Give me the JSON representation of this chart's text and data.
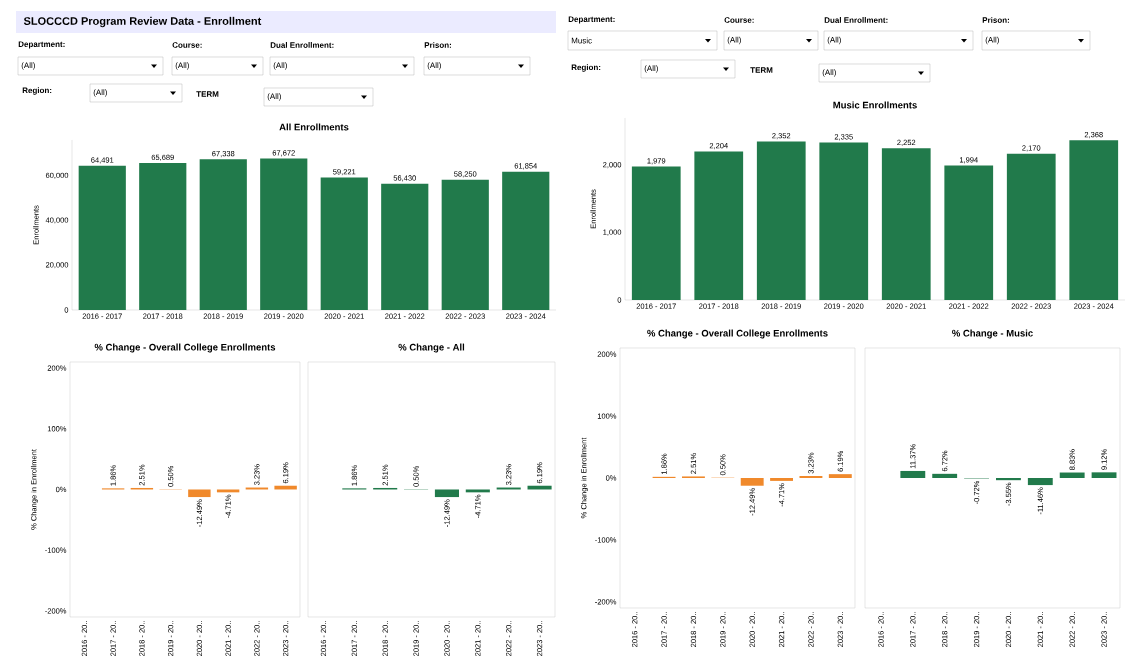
{
  "chart_data": [
    {
      "type": "other",
      "title": "SLOCCCD Program Review Data - Enrollment",
      "annotations": [
        "Department:",
        "(All)",
        "Course:",
        "(All)",
        "Dual Enrollment:",
        "(All)",
        "Prison:",
        "(All)",
        "Region:",
        "(All)",
        "TERM",
        "(All)"
      ]
    },
    {
      "type": "bar",
      "title": "All Enrollments",
      "ylabel": "Enrollments",
      "categories": [
        "2016 - 2017",
        "2017 - 2018",
        "2018 - 2019",
        "2019 - 2020",
        "2020 - 2021",
        "2021 - 2022",
        "2022 - 2023",
        "2023 - 2024"
      ],
      "values": [
        64491,
        65689,
        67338,
        67672,
        59221,
        56430,
        58250,
        61854
      ],
      "value_labels": [
        "64,491",
        "65,689",
        "67,338",
        "67,672",
        "59,221",
        "56,430",
        "58,250",
        "61,854"
      ],
      "color": "#217a4b",
      "ylim": [
        0,
        76000
      ],
      "yticks": [
        0,
        {
          "value": 20000,
          "label": "20,000"
        },
        {
          "value": 40000,
          "label": "40,000"
        },
        {
          "value": 60000,
          "label": "60,000"
        }
      ]
    },
    {
      "type": "bar",
      "title": "% Change - Overall College Enrollments",
      "ylabel": "% Change in Enrollment",
      "categories": [
        "2016 - 20..",
        "2017 - 20..",
        "2018 - 20..",
        "2019 - 20..",
        "2020 - 20..",
        "2021 - 20..",
        "2022 - 20..",
        "2023 - 20.."
      ],
      "values": [
        null,
        1.86,
        2.51,
        0.5,
        -12.49,
        -4.71,
        3.23,
        6.19
      ],
      "value_labels": [
        null,
        "1.86%",
        "2.51%",
        "0.50%",
        "-12.49%",
        "-4.71%",
        "3.23%",
        "6.19%"
      ],
      "color": "#f0892b",
      "ylim": [
        -210,
        210
      ],
      "yticks": [
        {
          "value": -200,
          "label": "-200%"
        },
        {
          "value": -100,
          "label": "-100%"
        },
        {
          "value": 0,
          "label": "0%"
        },
        {
          "value": 100,
          "label": "100%"
        },
        {
          "value": 200,
          "label": "200%"
        }
      ]
    },
    {
      "type": "bar",
      "title": "% Change - All",
      "categories": [
        "2016 - 20..",
        "2017 - 20..",
        "2018 - 20..",
        "2019 - 20..",
        "2020 - 20..",
        "2021 - 20..",
        "2022 - 20..",
        "2023 - 20.."
      ],
      "values": [
        null,
        1.86,
        2.51,
        0.5,
        -12.49,
        -4.71,
        3.23,
        6.19
      ],
      "value_labels": [
        null,
        "1.86%",
        "2.51%",
        "0.50%",
        "-12.49%",
        "-4.71%",
        "3.23%",
        "6.19%"
      ],
      "color": "#217a4b",
      "ylim": [
        -210,
        210
      ],
      "yticks": [
        {
          "value": -200,
          "label": null
        },
        {
          "value": -100,
          "label": null
        },
        {
          "value": 0,
          "label": null
        },
        {
          "value": 100,
          "label": null
        },
        {
          "value": 200,
          "label": null
        }
      ],
      "tick_labels": "x"
    },
    {
      "type": "other",
      "annotations": [
        "Department:",
        "Music",
        "Course:",
        "(All)",
        "Dual Enrollment:",
        "(All)",
        "Prison:",
        "(All)",
        "Region:",
        "(All)",
        "TERM",
        "(All)"
      ]
    },
    {
      "type": "bar",
      "title": "Music Enrollments",
      "ylabel": "Enrollments",
      "categories": [
        "2016 - 2017",
        "2017 - 2018",
        "2018 - 2019",
        "2019 - 2020",
        "2020 - 2021",
        "2021 - 2022",
        "2022 - 2023",
        "2023 - 2024"
      ],
      "values": [
        1979,
        2204,
        2352,
        2335,
        2252,
        1994,
        2170,
        2368
      ],
      "value_labels": [
        "1,979",
        "2,204",
        "2,352",
        "2,335",
        "2,252",
        "1,994",
        "2,170",
        "2,368"
      ],
      "color": "#217a4b",
      "ylim": [
        0,
        2700
      ],
      "yticks": [
        0,
        {
          "value": 1000,
          "label": "1,000"
        },
        {
          "value": 2000,
          "label": "2,000"
        }
      ]
    },
    {
      "type": "bar",
      "title": "% Change - Overall College Enrollments",
      "ylabel": "% Change in Enrollment",
      "categories": [
        "2016 - 20..",
        "2017 - 20..",
        "2018 - 20..",
        "2019 - 20..",
        "2020 - 20..",
        "2021 - 20..",
        "2022 - 20..",
        "2023 - 20.."
      ],
      "values": [
        null,
        1.86,
        2.51,
        0.5,
        -12.49,
        -4.71,
        3.23,
        6.19
      ],
      "value_labels": [
        null,
        "1.86%",
        "2.51%",
        "0.50%",
        "-12.49%",
        "-4.71%",
        "3.23%",
        "6.19%"
      ],
      "color": "#f0892b",
      "ylim": [
        -210,
        210
      ],
      "yticks": [
        {
          "value": -200,
          "label": "-200%"
        },
        {
          "value": -100,
          "label": "-100%"
        },
        {
          "value": 0,
          "label": "0%"
        },
        {
          "value": 100,
          "label": "100%"
        },
        {
          "value": 200,
          "label": "200%"
        }
      ]
    },
    {
      "type": "bar",
      "title": "% Change - Music",
      "categories": [
        "2016 - 20..",
        "2017 - 20..",
        "2018 - 20..",
        "2019 - 20..",
        "2020 - 20..",
        "2021 - 20..",
        "2022 - 20..",
        "2023 - 20.."
      ],
      "values": [
        null,
        11.37,
        6.72,
        -0.72,
        -3.55,
        -11.46,
        8.83,
        9.12
      ],
      "value_labels": [
        null,
        "11.37%",
        "6.72%",
        "-0.72%",
        "-3.55%",
        "-11.46%",
        "8.83%",
        "9.12%"
      ],
      "color": "#217a4b",
      "ylim": [
        -210,
        210
      ],
      "yticks": [
        {
          "value": -200,
          "label": null
        },
        {
          "value": -100,
          "label": null
        },
        {
          "value": 0,
          "label": null
        },
        {
          "value": 100,
          "label": null
        },
        {
          "value": 200,
          "label": null
        }
      ],
      "tick_labels": "x"
    }
  ]
}
